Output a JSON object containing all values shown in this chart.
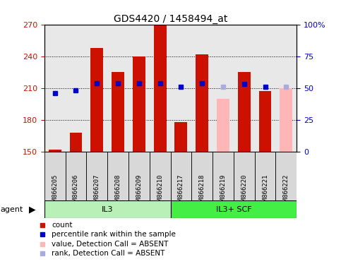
{
  "title": "GDS4420 / 1458494_at",
  "samples": [
    "GSM866205",
    "GSM866206",
    "GSM866207",
    "GSM866208",
    "GSM866209",
    "GSM866210",
    "GSM866217",
    "GSM866218",
    "GSM866219",
    "GSM866220",
    "GSM866221",
    "GSM866222"
  ],
  "bar_values": [
    152,
    168,
    248,
    225,
    240,
    270,
    178,
    242,
    200,
    225,
    207,
    210
  ],
  "bar_absent": [
    false,
    false,
    false,
    false,
    false,
    false,
    false,
    false,
    true,
    false,
    false,
    true
  ],
  "rank_values": [
    46,
    48,
    54,
    54,
    54,
    54,
    51,
    54,
    51,
    53,
    51,
    51
  ],
  "rank_absent": [
    false,
    false,
    false,
    false,
    false,
    false,
    false,
    false,
    true,
    false,
    false,
    true
  ],
  "groups": [
    {
      "label": "IL3",
      "start": 0,
      "end": 5,
      "color": "#b8f0b8"
    },
    {
      "label": "IL3+ SCF",
      "start": 6,
      "end": 11,
      "color": "#44ee44"
    }
  ],
  "bar_color_present": "#cc1100",
  "bar_color_absent": "#ffb6b6",
  "rank_color_present": "#0000cc",
  "rank_color_absent": "#aaaadd",
  "ylim_left": [
    150,
    270
  ],
  "ylim_right": [
    0,
    100
  ],
  "yticks_left": [
    150,
    180,
    210,
    240,
    270
  ],
  "yticks_right": [
    0,
    25,
    50,
    75,
    100
  ],
  "ytick_labels_right": [
    "0",
    "25",
    "50",
    "75",
    "100%"
  ],
  "background_color": "#e8e8e8",
  "title_fontsize": 10,
  "figsize": [
    4.83,
    3.84
  ],
  "dpi": 100
}
